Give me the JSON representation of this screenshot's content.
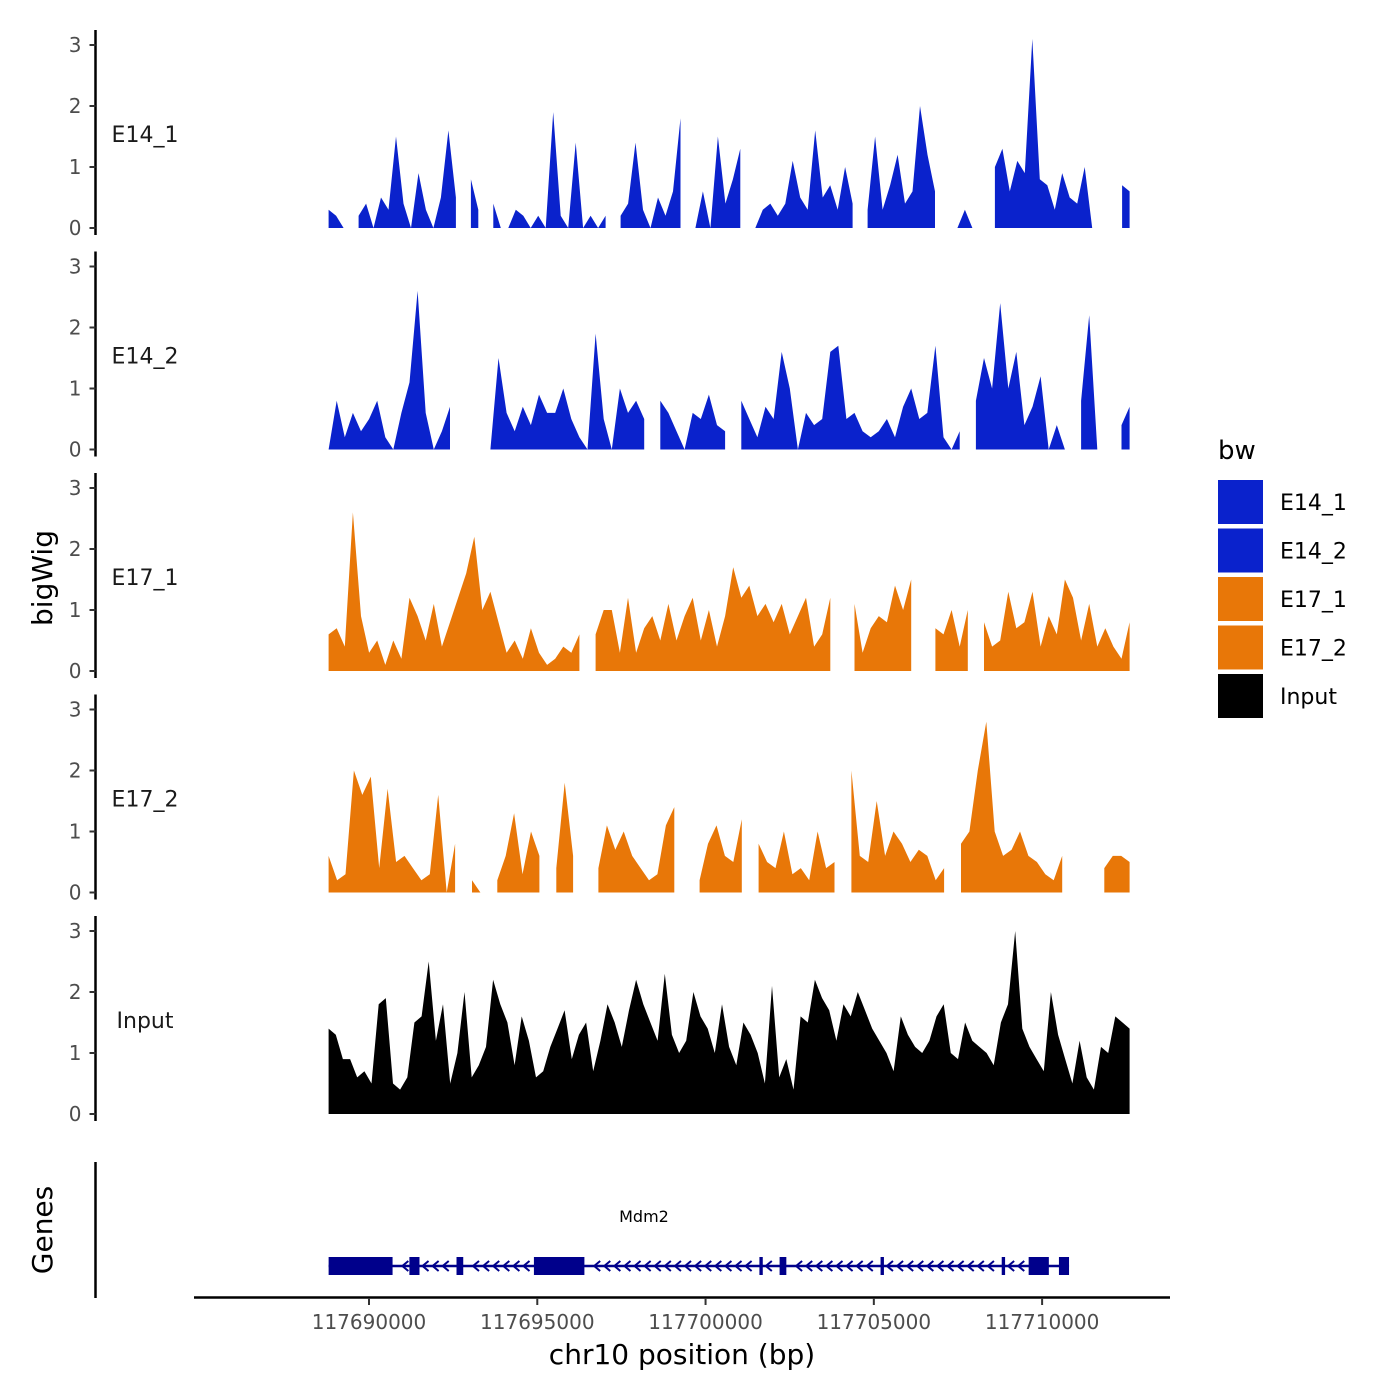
{
  "chart_data": {
    "type": "area",
    "ylabel": "bigWig",
    "xlabel": "chr10 position (bp)",
    "genes_label": "Genes",
    "ylim": [
      0,
      3.2
    ],
    "yticks": [
      0,
      1,
      2,
      3
    ],
    "xlim": [
      117684800,
      117713800
    ],
    "x_start": 117688800,
    "x_end": 117712600,
    "xticks": [
      117690000,
      117695000,
      117700000,
      117705000,
      117710000
    ],
    "xtick_labels": [
      "117690000",
      "117695000",
      "117700000",
      "117705000",
      "117710000"
    ],
    "legend": {
      "title": "bw",
      "entries": [
        {
          "name": "E14_1",
          "color": "#0a22cc"
        },
        {
          "name": "E14_2",
          "color": "#0a22cc"
        },
        {
          "name": "E17_1",
          "color": "#e87708"
        },
        {
          "name": "E17_2",
          "color": "#e87708"
        },
        {
          "name": "Input",
          "color": "#000000"
        }
      ]
    },
    "series": [
      {
        "name": "E14_1",
        "color": "#0a22cc",
        "values": [
          0.3,
          0.2,
          0,
          0.3,
          0.2,
          0.4,
          0,
          0.5,
          0.3,
          1.5,
          0.4,
          0,
          0.9,
          0.3,
          0,
          0.5,
          1.6,
          0.5,
          0.4,
          0.8,
          0.3,
          0.9,
          0.4,
          0,
          0,
          0.3,
          0.2,
          0,
          0.2,
          0,
          1.9,
          0.2,
          0,
          1.4,
          0,
          0.2,
          0,
          0.2,
          0.3,
          0.2,
          0.4,
          1.4,
          0.3,
          0,
          0.5,
          0.2,
          0.6,
          1.8,
          0.3,
          0,
          0.6,
          0,
          1.5,
          0.4,
          0.8,
          1.3,
          0.3,
          0,
          0.3,
          0.4,
          0.2,
          0.4,
          1.1,
          0.5,
          0.3,
          1.6,
          0.5,
          0.7,
          0.3,
          1.0,
          0.4,
          0,
          0.3,
          1.5,
          0.3,
          0.7,
          1.2,
          0.4,
          0.6,
          2.0,
          1.2,
          0.6,
          1.5,
          0,
          0,
          0.3,
          0,
          0,
          0.5,
          1.0,
          1.3,
          0.6,
          1.1,
          0.9,
          3.1,
          0.8,
          0.7,
          0.3,
          0.9,
          0.5,
          0.4,
          1.0,
          0,
          0,
          0.2,
          0,
          0.7,
          0.6
        ],
        "gaps": [
          [
            117689400,
            117689500
          ],
          [
            117692700,
            117693000
          ],
          [
            117693300,
            117693500
          ],
          [
            117697100,
            117697300
          ],
          [
            117699300,
            117699600
          ],
          [
            117701200,
            117701400
          ],
          [
            117704400,
            117704700
          ],
          [
            117706900,
            117707400
          ],
          [
            117708100,
            117708400
          ],
          [
            117710600,
            117710800
          ],
          [
            117711900,
            117712000
          ],
          [
            117712100,
            117712200
          ]
        ]
      },
      {
        "name": "E14_2",
        "color": "#0a22cc",
        "values": [
          0,
          0.8,
          0.2,
          0.6,
          0.3,
          0.5,
          0.8,
          0.2,
          0,
          0.6,
          1.1,
          2.6,
          0.6,
          0,
          0.3,
          0.7,
          0.2,
          1.2,
          0,
          0,
          0,
          1.5,
          0.6,
          0.3,
          0.7,
          0.4,
          0.9,
          0.6,
          0.6,
          1.0,
          0.5,
          0.2,
          0,
          1.9,
          0.5,
          0,
          1.0,
          0.6,
          0.8,
          0.5,
          0.5,
          0.8,
          0.6,
          0.3,
          0,
          0.6,
          0.5,
          0.9,
          0.4,
          0.3,
          0.7,
          0.8,
          0.5,
          0.2,
          0.7,
          0.5,
          1.6,
          1.0,
          0,
          0.6,
          0.4,
          0.5,
          1.6,
          1.7,
          0.5,
          0.6,
          0.3,
          0.2,
          0.3,
          0.5,
          0.2,
          0.7,
          1.0,
          0.5,
          0.6,
          1.7,
          0.2,
          0,
          0.3,
          0.8,
          0.8,
          1.5,
          1.0,
          2.4,
          1.0,
          1.6,
          0.4,
          0.7,
          1.2,
          0,
          0.4,
          0,
          0.4,
          0.8,
          2.2,
          0,
          0,
          0,
          0.4,
          0.7
        ],
        "gaps": [
          [
            117692500,
            117693100
          ],
          [
            117698200,
            117698500
          ],
          [
            117700600,
            117700900
          ],
          [
            117705400,
            117705600
          ],
          [
            117707600,
            117707900
          ],
          [
            117709500,
            117709700
          ],
          [
            117710900,
            117711100
          ],
          [
            117711500,
            117711600
          ],
          [
            117711900,
            117712200
          ]
        ]
      },
      {
        "name": "E17_1",
        "color": "#e87708",
        "values": [
          0.6,
          0.7,
          0.4,
          2.6,
          0.9,
          0.3,
          0.5,
          0.1,
          0.5,
          0.2,
          1.2,
          0.9,
          0.5,
          1.1,
          0.4,
          0.8,
          1.2,
          1.6,
          2.2,
          1.0,
          1.3,
          0.8,
          0.3,
          0.5,
          0.2,
          0.7,
          0.3,
          0.1,
          0.2,
          0.4,
          0.3,
          0.6,
          0.9,
          0.6,
          1.0,
          1.0,
          0.3,
          1.2,
          0.3,
          0.7,
          0.9,
          0.5,
          1.1,
          0.5,
          0.9,
          1.2,
          0.5,
          1.0,
          0.4,
          0.9,
          1.7,
          1.2,
          1.4,
          0.9,
          1.1,
          0.8,
          1.1,
          0.6,
          0.9,
          1.2,
          0.4,
          0.6,
          1.2,
          0.2,
          0.6,
          1.1,
          0.3,
          0.7,
          0.9,
          0.8,
          1.4,
          1.0,
          1.5,
          1.2,
          0.9,
          0.7,
          0.6,
          1.0,
          0.4,
          1.0,
          1.0,
          0.8,
          0.4,
          0.5,
          1.3,
          0.7,
          0.8,
          1.3,
          0.4,
          0.9,
          0.6,
          1.5,
          1.2,
          0.5,
          1.1,
          0.4,
          0.7,
          0.4,
          0.2,
          0.8
        ],
        "gaps": [
          [
            117696300,
            117696700
          ],
          [
            117700100,
            117700300
          ],
          [
            117703900,
            117704200
          ],
          [
            117706300,
            117706600
          ],
          [
            117708000,
            117708200
          ]
        ]
      },
      {
        "name": "E17_2",
        "color": "#e87708",
        "values": [
          0.6,
          0.2,
          0.3,
          2.0,
          1.6,
          1.9,
          0.4,
          1.7,
          0.5,
          0.6,
          0.4,
          0.2,
          0.3,
          1.6,
          0,
          0.8,
          0.5,
          0.2,
          0,
          0.8,
          0.2,
          0.6,
          1.3,
          0.3,
          1.0,
          0.6,
          0,
          0.4,
          1.8,
          0.6,
          0.5,
          0.4,
          0.4,
          1.1,
          0.7,
          1.0,
          0.6,
          0.4,
          0.2,
          0.3,
          1.1,
          1.4,
          1.3,
          0.6,
          0.2,
          0.8,
          1.1,
          0.6,
          0.5,
          1.2,
          0.3,
          0.8,
          0.5,
          0.4,
          1.0,
          0.3,
          0.4,
          0.2,
          1.0,
          0.4,
          0.5,
          0.3,
          2.0,
          0.6,
          0.5,
          1.5,
          0.6,
          1.0,
          0.8,
          0.5,
          0.7,
          0.6,
          0.2,
          0.4,
          0.6,
          0.8,
          1.0,
          2.0,
          2.8,
          1.0,
          0.6,
          0.7,
          1.0,
          0.6,
          0.5,
          0.3,
          0.2,
          0.6,
          0.8,
          0.3,
          1.1,
          0.6,
          0.4,
          0.6,
          0.6,
          0.5
        ],
        "gaps": [
          [
            117689100,
            117689300
          ],
          [
            117692600,
            117693000
          ],
          [
            117693500,
            117693700
          ],
          [
            117695300,
            117695400
          ],
          [
            117696300,
            117696600
          ],
          [
            117699300,
            117699600
          ],
          [
            117701200,
            117701400
          ],
          [
            117704000,
            117704300
          ],
          [
            117707200,
            117707500
          ],
          [
            117710800,
            117711100
          ],
          [
            117711500,
            117711700
          ]
        ]
      },
      {
        "name": "Input",
        "color": "#000000",
        "values": [
          1.4,
          1.3,
          0.9,
          0.9,
          0.6,
          0.7,
          0.5,
          1.8,
          1.9,
          0.5,
          0.4,
          0.6,
          1.5,
          1.6,
          2.5,
          1.2,
          1.8,
          0.5,
          1.0,
          2.0,
          0.6,
          0.8,
          1.1,
          2.2,
          1.8,
          1.5,
          0.8,
          1.6,
          1.2,
          0.6,
          0.7,
          1.1,
          1.4,
          1.7,
          0.9,
          1.3,
          1.5,
          0.7,
          1.2,
          1.8,
          1.5,
          1.1,
          1.7,
          2.2,
          1.8,
          1.5,
          1.2,
          2.3,
          1.3,
          1.0,
          1.2,
          2.0,
          1.6,
          1.4,
          1.0,
          1.8,
          1.1,
          0.8,
          1.5,
          1.3,
          1.0,
          0.5,
          2.1,
          0.6,
          0.9,
          0.4,
          1.6,
          1.5,
          2.2,
          1.9,
          1.7,
          1.2,
          1.8,
          1.6,
          2.0,
          1.7,
          1.4,
          1.2,
          1.0,
          0.7,
          1.6,
          1.3,
          1.1,
          1.0,
          1.2,
          1.6,
          1.8,
          1.0,
          0.9,
          1.5,
          1.2,
          1.1,
          1.0,
          0.8,
          1.5,
          1.8,
          3.0,
          1.4,
          1.1,
          0.9,
          0.7,
          2.0,
          1.3,
          0.9,
          0.5,
          1.2,
          0.6,
          0.4,
          1.1,
          1.0,
          1.6,
          1.5,
          1.4
        ]
      }
    ],
    "gene": {
      "name": "Mdm2",
      "start": 117688800,
      "end": 117710800,
      "strand": "-",
      "exons": [
        [
          117688800,
          117690700
        ],
        [
          117691200,
          117691500
        ],
        [
          117692600,
          117692800
        ],
        [
          117694900,
          117696400
        ],
        [
          117701600,
          117701700
        ],
        [
          117702200,
          117702400
        ],
        [
          117705200,
          117705300
        ],
        [
          117708800,
          117708900
        ],
        [
          117709600,
          117710200
        ],
        [
          117710500,
          117710800
        ]
      ]
    }
  }
}
